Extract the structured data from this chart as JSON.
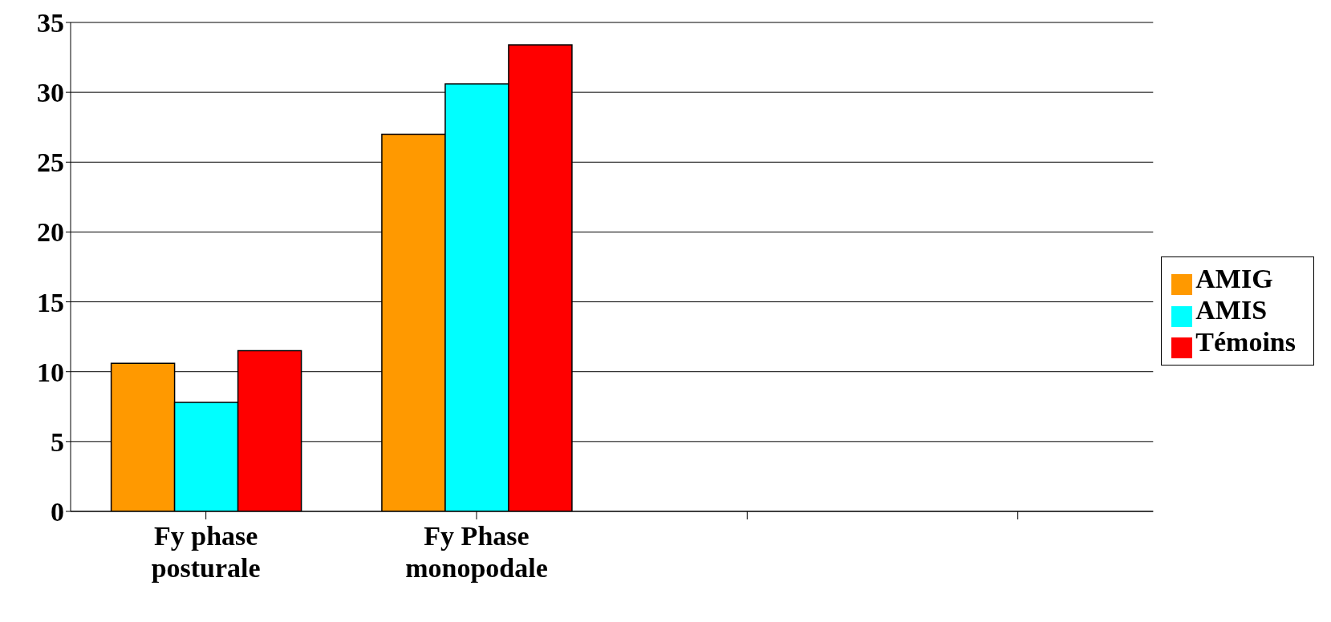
{
  "chart_data": {
    "type": "bar",
    "categories": [
      "Fy phase posturale",
      "Fy Phase monopodale",
      null,
      null
    ],
    "series": [
      {
        "name": "AMIG",
        "color": "#ff9900",
        "values": [
          10.6,
          27,
          null,
          null
        ]
      },
      {
        "name": "AMIS",
        "color": "#00ffff",
        "values": [
          7.8,
          30.6,
          null,
          null
        ]
      },
      {
        "name": "Témoins",
        "color": "#ff0000",
        "values": [
          11.5,
          33.4,
          null,
          null
        ]
      }
    ],
    "ylim": [
      0,
      35
    ],
    "yticks": [
      0,
      5,
      10,
      15,
      20,
      25,
      30,
      35
    ],
    "grid": "y",
    "legend": "right"
  }
}
